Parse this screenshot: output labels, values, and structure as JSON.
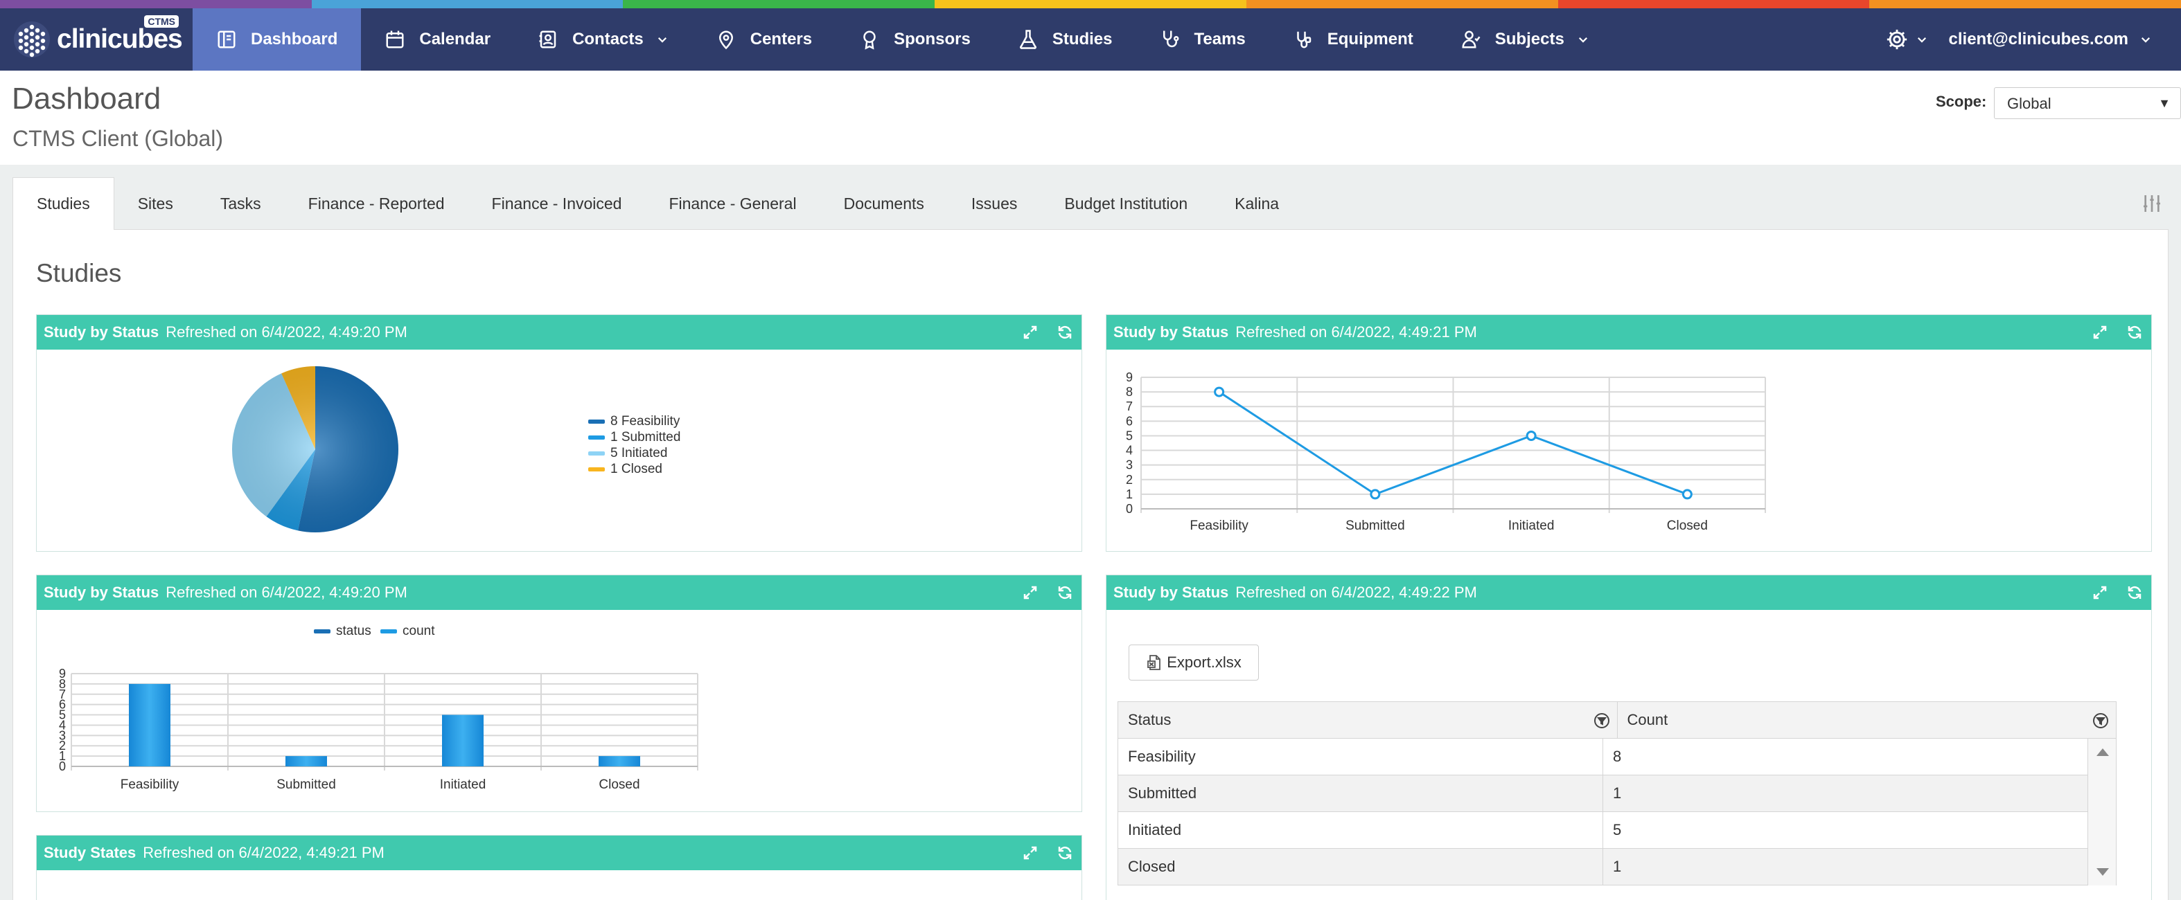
{
  "colors": {
    "navbar": "#2f3c6a",
    "nav_active": "#5c76c2",
    "widget_header": "#40c9ae",
    "rainbow": [
      "#7d4ea1",
      "#4aa3d8",
      "#3ab54a",
      "#f6c21c",
      "#f39121",
      "#e8462b",
      "#f39121"
    ]
  },
  "app": {
    "logo_text": "clinicubes",
    "logo_badge": "CTMS"
  },
  "nav": {
    "items": [
      {
        "label": "Dashboard",
        "icon": "dashboard-icon",
        "active": true
      },
      {
        "label": "Calendar",
        "icon": "calendar-icon"
      },
      {
        "label": "Contacts",
        "icon": "contacts-icon",
        "dropdown": true
      },
      {
        "label": "Centers",
        "icon": "location-pin-icon"
      },
      {
        "label": "Sponsors",
        "icon": "award-icon"
      },
      {
        "label": "Studies",
        "icon": "flask-icon"
      },
      {
        "label": "Teams",
        "icon": "stethoscope-icon"
      },
      {
        "label": "Equipment",
        "icon": "equipment-icon"
      },
      {
        "label": "Subjects",
        "icon": "subjects-icon",
        "dropdown": true
      }
    ],
    "user": "client@clinicubes.com"
  },
  "page": {
    "title": "Dashboard",
    "subtitle": "CTMS Client (Global)",
    "scope_label": "Scope:",
    "scope_value": "Global"
  },
  "tabs": [
    {
      "label": "Studies",
      "active": true
    },
    {
      "label": "Sites"
    },
    {
      "label": "Tasks"
    },
    {
      "label": "Finance - Reported"
    },
    {
      "label": "Finance - Invoiced"
    },
    {
      "label": "Finance - General"
    },
    {
      "label": "Documents"
    },
    {
      "label": "Issues"
    },
    {
      "label": "Budget Institution"
    },
    {
      "label": "Kalina"
    }
  ],
  "section_title": "Studies",
  "widgets": {
    "pie": {
      "title": "Study by Status",
      "refreshed": "Refreshed on 6/4/2022, 4:49:20 PM"
    },
    "line": {
      "title": "Study by Status",
      "refreshed": "Refreshed on 6/4/2022, 4:49:21 PM"
    },
    "bar": {
      "title": "Study by Status",
      "refreshed": "Refreshed on 6/4/2022, 4:49:20 PM"
    },
    "table": {
      "title": "Study by Status",
      "refreshed": "Refreshed on 6/4/2022, 4:49:22 PM"
    },
    "states": {
      "title": "Study States",
      "refreshed": "Refreshed on 6/4/2022, 4:49:21 PM"
    }
  },
  "chart_data": [
    {
      "type": "pie",
      "categories": [
        "Feasibility",
        "Submitted",
        "Initiated",
        "Closed"
      ],
      "values": [
        8,
        1,
        5,
        1
      ],
      "legend": [
        "8 Feasibility",
        "1 Submitted",
        "5 Initiated",
        "1 Closed"
      ],
      "colors": [
        "#1a6fb5",
        "#1e9be3",
        "#8ed3f5",
        "#f8b51f"
      ],
      "legend_position": "right"
    },
    {
      "type": "line",
      "categories": [
        "Feasibility",
        "Submitted",
        "Initiated",
        "Closed"
      ],
      "values": [
        8,
        1,
        5,
        1
      ],
      "ylim": [
        0,
        9
      ],
      "yticks": [
        "0",
        "1",
        "2",
        "3",
        "4",
        "5",
        "6",
        "7",
        "8",
        "9"
      ],
      "grid": true,
      "color": "#1e9be3"
    },
    {
      "type": "bar",
      "categories": [
        "Feasibility",
        "Submitted",
        "Initiated",
        "Closed"
      ],
      "series": [
        {
          "name": "status",
          "values": [
            0,
            0,
            0,
            0
          ],
          "color": "#1a6fb5"
        },
        {
          "name": "count",
          "values": [
            8,
            1,
            5,
            1
          ],
          "color": "#1e9be3"
        }
      ],
      "ylim": [
        0,
        9
      ],
      "yticks": [
        "0",
        "1",
        "2",
        "3",
        "4",
        "5",
        "6",
        "7",
        "8",
        "9"
      ],
      "grid": true,
      "legend_position": "top"
    },
    {
      "type": "table",
      "export_label": "Export.xlsx",
      "columns": [
        "Status",
        "Count"
      ],
      "rows": [
        [
          "Feasibility",
          "8"
        ],
        [
          "Submitted",
          "1"
        ],
        [
          "Initiated",
          "5"
        ],
        [
          "Closed",
          "1"
        ]
      ]
    }
  ]
}
